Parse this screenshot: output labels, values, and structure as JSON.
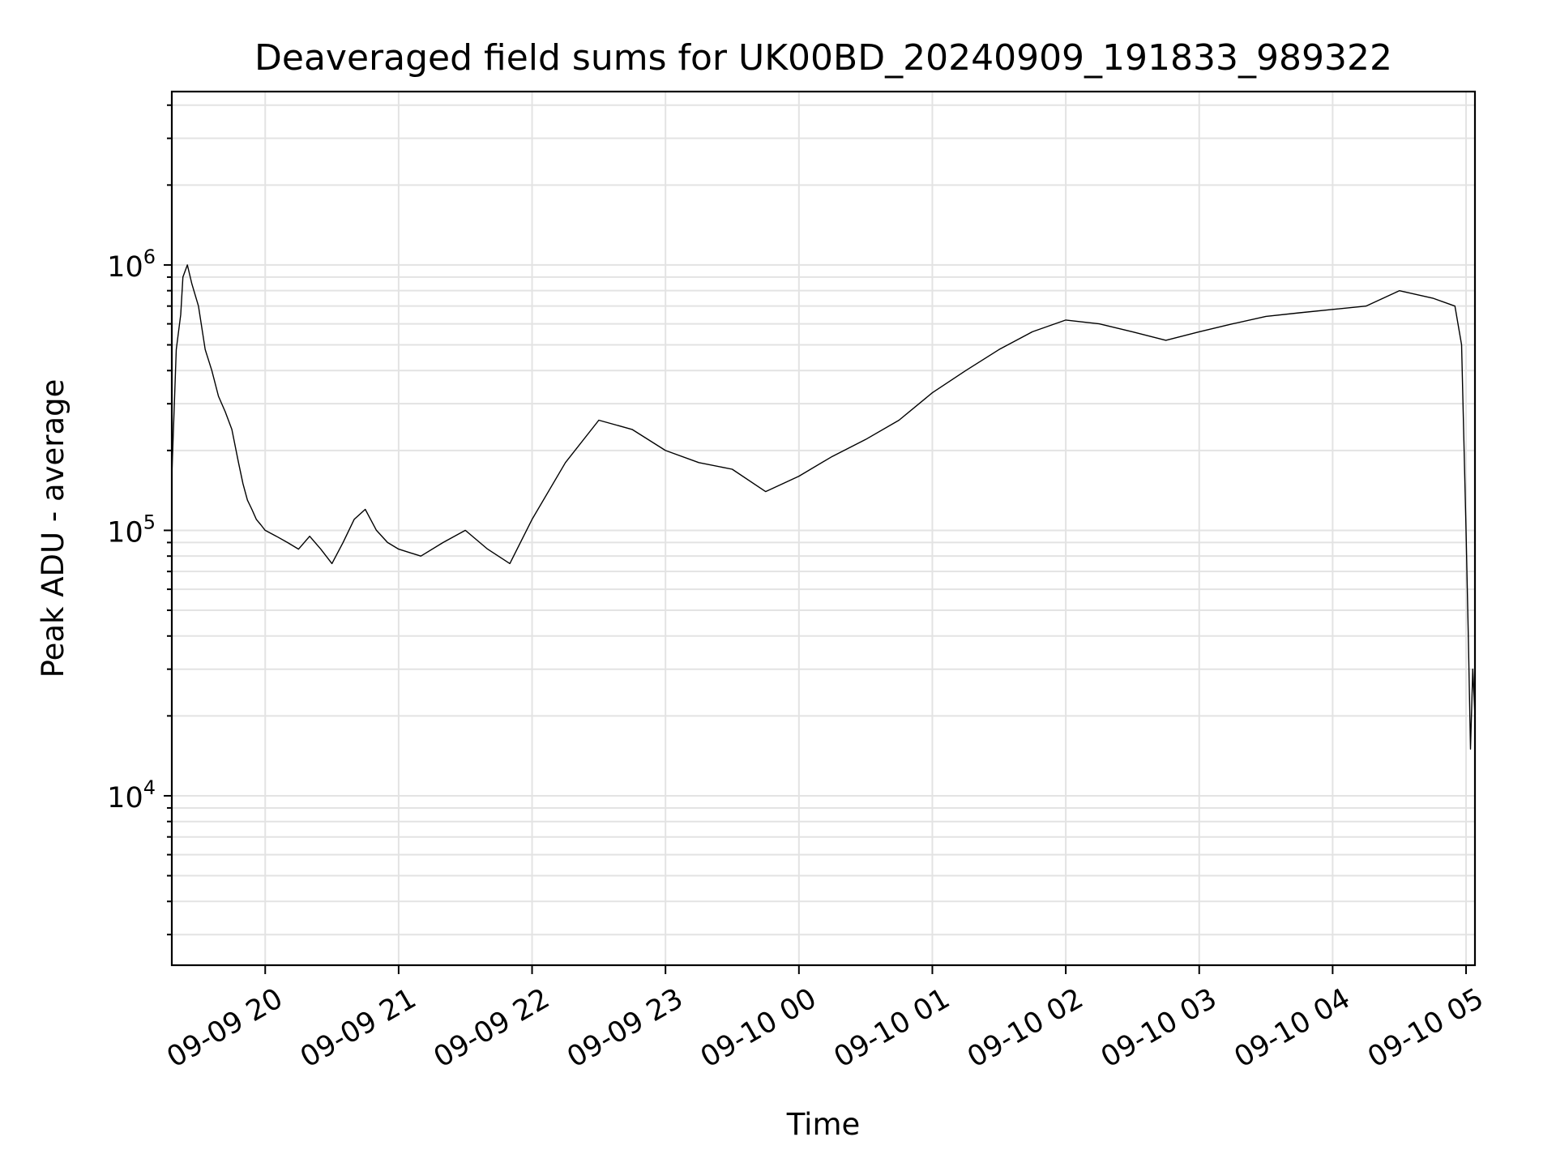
{
  "chart_data": {
    "type": "line",
    "title": "Deaveraged field sums for UK00BD_20240909_191833_989322",
    "xlabel": "Time",
    "ylabel": "Peak ADU - average",
    "y_scale": "log",
    "ylim": [
      2300,
      4500000
    ],
    "xlim": [
      "2024-09-09 19:18",
      "2024-09-10 05:04"
    ],
    "grid": true,
    "line_color": "#000000",
    "x_ticks": [
      {
        "time": "2024-09-09 20:00",
        "label": "09-09 20"
      },
      {
        "time": "2024-09-09 21:00",
        "label": "09-09 21"
      },
      {
        "time": "2024-09-09 22:00",
        "label": "09-09 22"
      },
      {
        "time": "2024-09-09 23:00",
        "label": "09-09 23"
      },
      {
        "time": "2024-09-10 00:00",
        "label": "09-10 00"
      },
      {
        "time": "2024-09-10 01:00",
        "label": "09-10 01"
      },
      {
        "time": "2024-09-10 02:00",
        "label": "09-10 02"
      },
      {
        "time": "2024-09-10 03:00",
        "label": "09-10 03"
      },
      {
        "time": "2024-09-10 04:00",
        "label": "09-10 04"
      },
      {
        "time": "2024-09-10 05:00",
        "label": "09-10 05"
      }
    ],
    "y_ticks": [
      {
        "value": 10000,
        "base": "10",
        "exp": "4"
      },
      {
        "value": 100000,
        "base": "10",
        "exp": "5"
      },
      {
        "value": 1000000,
        "base": "10",
        "exp": "6"
      }
    ],
    "series": [
      {
        "x": [
          "2024-09-09 19:18",
          "2024-09-09 19:20",
          "2024-09-09 19:22",
          "2024-09-09 19:23",
          "2024-09-09 19:25",
          "2024-09-09 19:27",
          "2024-09-09 19:30",
          "2024-09-09 19:33",
          "2024-09-09 19:36",
          "2024-09-09 19:39",
          "2024-09-09 19:42",
          "2024-09-09 19:45",
          "2024-09-09 19:48",
          "2024-09-09 19:50",
          "2024-09-09 19:52",
          "2024-09-09 19:54",
          "2024-09-09 19:56",
          "2024-09-09 19:58",
          "2024-09-09 20:00",
          "2024-09-09 20:05",
          "2024-09-09 20:10",
          "2024-09-09 20:15",
          "2024-09-09 20:20",
          "2024-09-09 20:25",
          "2024-09-09 20:30",
          "2024-09-09 20:35",
          "2024-09-09 20:40",
          "2024-09-09 20:45",
          "2024-09-09 20:50",
          "2024-09-09 20:55",
          "2024-09-09 21:00",
          "2024-09-09 21:10",
          "2024-09-09 21:20",
          "2024-09-09 21:30",
          "2024-09-09 21:40",
          "2024-09-09 21:50",
          "2024-09-09 22:00",
          "2024-09-09 22:15",
          "2024-09-09 22:30",
          "2024-09-09 22:45",
          "2024-09-09 23:00",
          "2024-09-09 23:15",
          "2024-09-09 23:30",
          "2024-09-09 23:45",
          "2024-09-10 00:00",
          "2024-09-10 00:15",
          "2024-09-10 00:30",
          "2024-09-10 00:45",
          "2024-09-10 01:00",
          "2024-09-10 01:15",
          "2024-09-10 01:30",
          "2024-09-10 01:45",
          "2024-09-10 02:00",
          "2024-09-10 02:15",
          "2024-09-10 02:30",
          "2024-09-10 02:45",
          "2024-09-10 03:00",
          "2024-09-10 03:15",
          "2024-09-10 03:30",
          "2024-09-10 03:45",
          "2024-09-10 04:00",
          "2024-09-10 04:15",
          "2024-09-10 04:30",
          "2024-09-10 04:45",
          "2024-09-10 04:55",
          "2024-09-10 04:58",
          "2024-09-10 05:00",
          "2024-09-10 05:01",
          "2024-09-10 05:02",
          "2024-09-10 05:03",
          "2024-09-10 05:04"
        ],
        "y": [
          160000,
          480000,
          650000,
          900000,
          1000000,
          850000,
          700000,
          480000,
          400000,
          320000,
          280000,
          240000,
          180000,
          150000,
          130000,
          120000,
          110000,
          105000,
          100000,
          95000,
          90000,
          85000,
          95000,
          85000,
          75000,
          90000,
          110000,
          120000,
          100000,
          90000,
          85000,
          80000,
          90000,
          100000,
          85000,
          75000,
          110000,
          180000,
          260000,
          240000,
          200000,
          180000,
          170000,
          140000,
          160000,
          190000,
          220000,
          260000,
          330000,
          400000,
          480000,
          560000,
          620000,
          600000,
          560000,
          520000,
          560000,
          600000,
          640000,
          660000,
          680000,
          700000,
          800000,
          750000,
          700000,
          500000,
          100000,
          40000,
          15000,
          30000,
          20000
        ]
      }
    ]
  }
}
